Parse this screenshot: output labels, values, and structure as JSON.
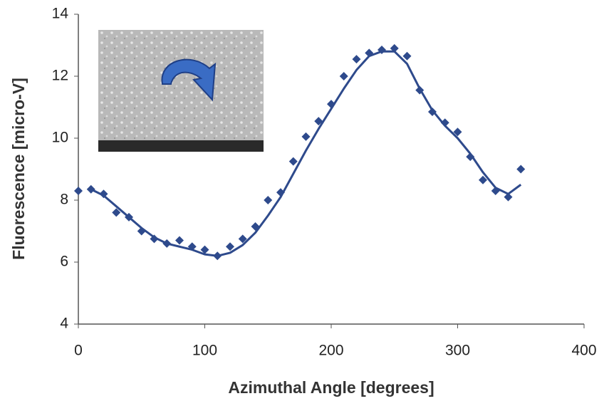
{
  "chart_data": {
    "type": "scatter",
    "x_label": "Azimuthal Angle [degrees]",
    "y_label": "Fluorescence [micro-V]",
    "x": [
      0,
      10,
      20,
      30,
      40,
      50,
      60,
      70,
      80,
      90,
      100,
      110,
      120,
      130,
      140,
      150,
      160,
      170,
      180,
      190,
      200,
      210,
      220,
      230,
      240,
      250,
      260,
      270,
      280,
      290,
      300,
      310,
      320,
      330,
      340,
      350
    ],
    "series": [
      {
        "mode": "markers",
        "color": "#2e4a8c",
        "values": [
          8.3,
          8.35,
          8.2,
          7.6,
          7.45,
          7.0,
          6.75,
          6.6,
          6.7,
          6.5,
          6.4,
          6.2,
          6.5,
          6.75,
          7.15,
          8.0,
          8.25,
          9.25,
          10.05,
          10.55,
          11.1,
          12.0,
          12.55,
          12.75,
          12.85,
          12.9,
          12.65,
          11.55,
          10.85,
          10.5,
          10.2,
          9.4,
          8.65,
          8.3,
          8.1,
          9.0
        ]
      },
      {
        "mode": "line",
        "color": "#2e4a8c",
        "values": [
          null,
          8.35,
          8.15,
          7.8,
          7.45,
          7.1,
          6.8,
          6.6,
          6.5,
          6.4,
          6.25,
          6.2,
          6.3,
          6.55,
          6.95,
          7.5,
          8.1,
          8.85,
          9.6,
          10.3,
          10.95,
          11.6,
          12.2,
          12.65,
          12.8,
          12.8,
          12.4,
          11.6,
          10.9,
          10.4,
          10.0,
          9.5,
          8.9,
          8.4,
          8.2,
          8.5
        ]
      }
    ],
    "xlim": [
      0,
      400
    ],
    "xticks": [
      0,
      100,
      200,
      300,
      400
    ],
    "ylim": [
      4,
      14
    ],
    "yticks": [
      4,
      6,
      8,
      10,
      12,
      14
    ]
  }
}
